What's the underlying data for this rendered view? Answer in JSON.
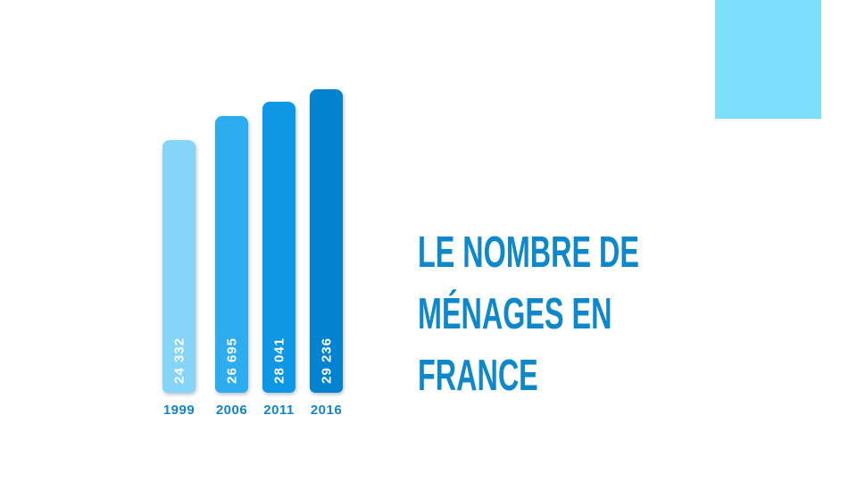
{
  "slide": {
    "title": {
      "lines": [
        "LE NOMBRE DE",
        "MÉNAGES EN",
        "FRANCE"
      ],
      "color": "#0E87CB"
    },
    "decor": {
      "corner_square_color": "#7EDFFC"
    }
  },
  "chart_data": {
    "type": "bar",
    "title": "Le nombre de ménages en France",
    "xlabel": "",
    "ylabel": "",
    "categories": [
      "1999",
      "2006",
      "2011",
      "2016"
    ],
    "values": [
      24332,
      26695,
      28041,
      29236
    ],
    "value_labels": [
      "24 332",
      "26 695",
      "28 041",
      "29 236"
    ],
    "bar_colors": [
      "#85D5F8",
      "#2EACF0",
      "#0D97E5",
      "#0283CF"
    ],
    "value_label_color": "#FFFFFF",
    "category_label_color": "#1385C9",
    "ylim": [
      0,
      29236
    ],
    "grid": false,
    "legend": false,
    "orientation": "vertical",
    "value_labels_position": "inside-bottom-rotated"
  }
}
